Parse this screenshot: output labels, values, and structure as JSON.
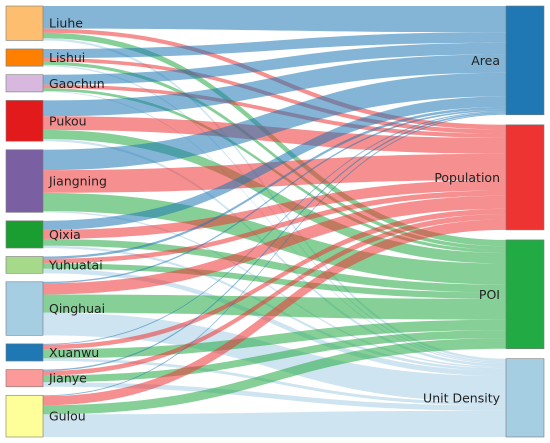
{
  "chart_data": {
    "type": "sankey",
    "sources": [
      {
        "name": "Liuhe",
        "color": "#fdbf6f"
      },
      {
        "name": "Lishui",
        "color": "#ff7f00"
      },
      {
        "name": "Gaochun",
        "color": "#d9b8df"
      },
      {
        "name": "Pukou",
        "color": "#e31a1c"
      },
      {
        "name": "Jiangning",
        "color": "#7b5fa3"
      },
      {
        "name": "Qixia",
        "color": "#1a9e32"
      },
      {
        "name": "Yuhuatai",
        "color": "#a6d98a"
      },
      {
        "name": "Qinghuai",
        "color": "#a6cee3"
      },
      {
        "name": "Xuanwu",
        "color": "#1f78b4"
      },
      {
        "name": "Jianye",
        "color": "#fb9a99"
      },
      {
        "name": "Gulou",
        "color": "#ffff99"
      }
    ],
    "targets": [
      {
        "name": "Area",
        "color": "#1f78b4",
        "link_color": "#1f78b4"
      },
      {
        "name": "Population",
        "color": "#ee3333",
        "link_color": "#ee3333"
      },
      {
        "name": "POI",
        "color": "#22aa44",
        "link_color": "#22aa44"
      },
      {
        "name": "Unit Density",
        "color": "#a6cee3",
        "link_color": "#a6cee3"
      }
    ],
    "flows": [
      {
        "source": "Liuhe",
        "target": "Area",
        "value": 0.5
      },
      {
        "source": "Liuhe",
        "target": "Population",
        "value": 0.09
      },
      {
        "source": "Liuhe",
        "target": "POI",
        "value": 0.12
      },
      {
        "source": "Liuhe",
        "target": "Unit Density",
        "value": 0.05
      },
      {
        "source": "Lishui",
        "target": "Area",
        "value": 0.2
      },
      {
        "source": "Lishui",
        "target": "Population",
        "value": 0.08
      },
      {
        "source": "Lishui",
        "target": "POI",
        "value": 0.07
      },
      {
        "source": "Lishui",
        "target": "Unit Density",
        "value": 0.03
      },
      {
        "source": "Gaochun",
        "target": "Area",
        "value": 0.22
      },
      {
        "source": "Gaochun",
        "target": "Population",
        "value": 0.08
      },
      {
        "source": "Gaochun",
        "target": "POI",
        "value": 0.06
      },
      {
        "source": "Gaochun",
        "target": "Unit Density",
        "value": 0.02
      },
      {
        "source": "Pukou",
        "target": "Area",
        "value": 0.35
      },
      {
        "source": "Pukou",
        "target": "Population",
        "value": 0.3
      },
      {
        "source": "Pukou",
        "target": "POI",
        "value": 0.2
      },
      {
        "source": "Pukou",
        "target": "Unit Density",
        "value": 0.05
      },
      {
        "source": "Jiangning",
        "target": "Area",
        "value": 0.45
      },
      {
        "source": "Jiangning",
        "target": "Population",
        "value": 0.5
      },
      {
        "source": "Jiangning",
        "target": "POI",
        "value": 0.4
      },
      {
        "source": "Jiangning",
        "target": "Unit Density",
        "value": 0.03
      },
      {
        "source": "Qixia",
        "target": "Area",
        "value": 0.2
      },
      {
        "source": "Qixia",
        "target": "Population",
        "value": 0.2
      },
      {
        "source": "Qixia",
        "target": "POI",
        "value": 0.15
      },
      {
        "source": "Qixia",
        "target": "Unit Density",
        "value": 0.05
      },
      {
        "source": "Yuhuatai",
        "target": "Area",
        "value": 0.05
      },
      {
        "source": "Yuhuatai",
        "target": "Population",
        "value": 0.1
      },
      {
        "source": "Yuhuatai",
        "target": "POI",
        "value": 0.12
      },
      {
        "source": "Yuhuatai",
        "target": "Unit Density",
        "value": 0.1
      },
      {
        "source": "Qinghuai",
        "target": "Area",
        "value": 0.03
      },
      {
        "source": "Qinghuai",
        "target": "Population",
        "value": 0.25
      },
      {
        "source": "Qinghuai",
        "target": "POI",
        "value": 0.4
      },
      {
        "source": "Qinghuai",
        "target": "Unit Density",
        "value": 0.5
      },
      {
        "source": "Xuanwu",
        "target": "Area",
        "value": 0.02
      },
      {
        "source": "Xuanwu",
        "target": "Population",
        "value": 0.1
      },
      {
        "source": "Xuanwu",
        "target": "POI",
        "value": 0.2
      },
      {
        "source": "Xuanwu",
        "target": "Unit Density",
        "value": 0.06
      },
      {
        "source": "Jianye",
        "target": "Area",
        "value": 0.03
      },
      {
        "source": "Jianye",
        "target": "Population",
        "value": 0.1
      },
      {
        "source": "Jianye",
        "target": "POI",
        "value": 0.15
      },
      {
        "source": "Jianye",
        "target": "Unit Density",
        "value": 0.1
      },
      {
        "source": "Gulou",
        "target": "Area",
        "value": 0.02
      },
      {
        "source": "Gulou",
        "target": "Population",
        "value": 0.2
      },
      {
        "source": "Gulou",
        "target": "POI",
        "value": 0.2
      },
      {
        "source": "Gulou",
        "target": "Unit Density",
        "value": 0.5
      }
    ]
  }
}
